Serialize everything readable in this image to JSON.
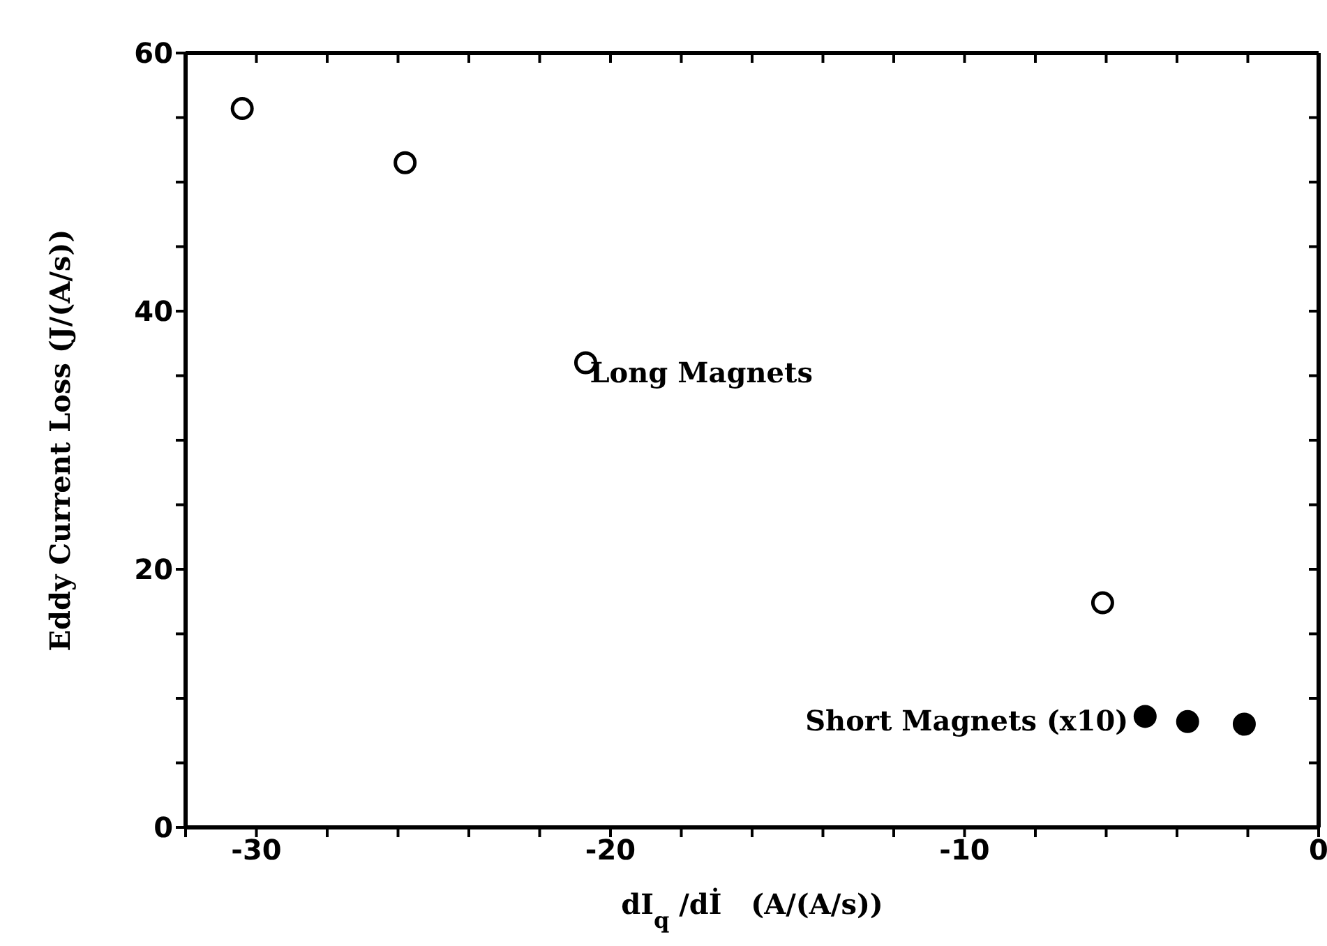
{
  "chart_data": {
    "type": "scatter",
    "xlabel": "dI$_{q}$ /dİ   (A/(A/s))",
    "ylabel": "Eddy Current Loss (J/(A/s))",
    "xlim": [
      -32,
      0
    ],
    "xticks": [
      {
        "value": -32,
        "label": null
      },
      -30,
      {
        "value": -28,
        "label": null
      },
      {
        "value": -26,
        "label": null
      },
      {
        "value": -24,
        "label": null
      },
      {
        "value": -22,
        "label": null
      },
      -20,
      {
        "value": -18,
        "label": null
      },
      {
        "value": -16,
        "label": null
      },
      {
        "value": -14,
        "label": null
      },
      {
        "value": -12,
        "label": null
      },
      -10,
      {
        "value": -8,
        "label": null
      },
      {
        "value": -6,
        "label": null
      },
      {
        "value": -4,
        "label": null
      },
      {
        "value": -2,
        "label": null
      },
      0
    ],
    "ylim": [
      0,
      60
    ],
    "yticks": [
      0,
      {
        "value": 5,
        "label": null
      },
      {
        "value": 10,
        "label": null
      },
      {
        "value": 15,
        "label": null
      },
      20,
      {
        "value": 25,
        "label": null
      },
      {
        "value": 30,
        "label": null
      },
      {
        "value": 35,
        "label": null
      },
      40,
      {
        "value": 45,
        "label": null
      },
      {
        "value": 50,
        "label": null
      },
      {
        "value": 55,
        "label": null
      },
      60
    ],
    "grid": false,
    "legend": false,
    "series": [
      {
        "name": "Long Magnets",
        "color": "#000000",
        "marker": "circle",
        "x": [
          -30.4,
          -25.8,
          -20.7,
          -6.1
        ],
        "values": [
          55.7,
          51.5,
          36.0,
          17.4
        ]
      },
      {
        "name": "Short Magnets (x10)",
        "color": "#000000",
        "marker": "circle",
        "x": [
          -4.9,
          -3.7,
          -2.1
        ],
        "values": [
          8.6,
          8.2,
          8.0
        ]
      }
    ]
  }
}
